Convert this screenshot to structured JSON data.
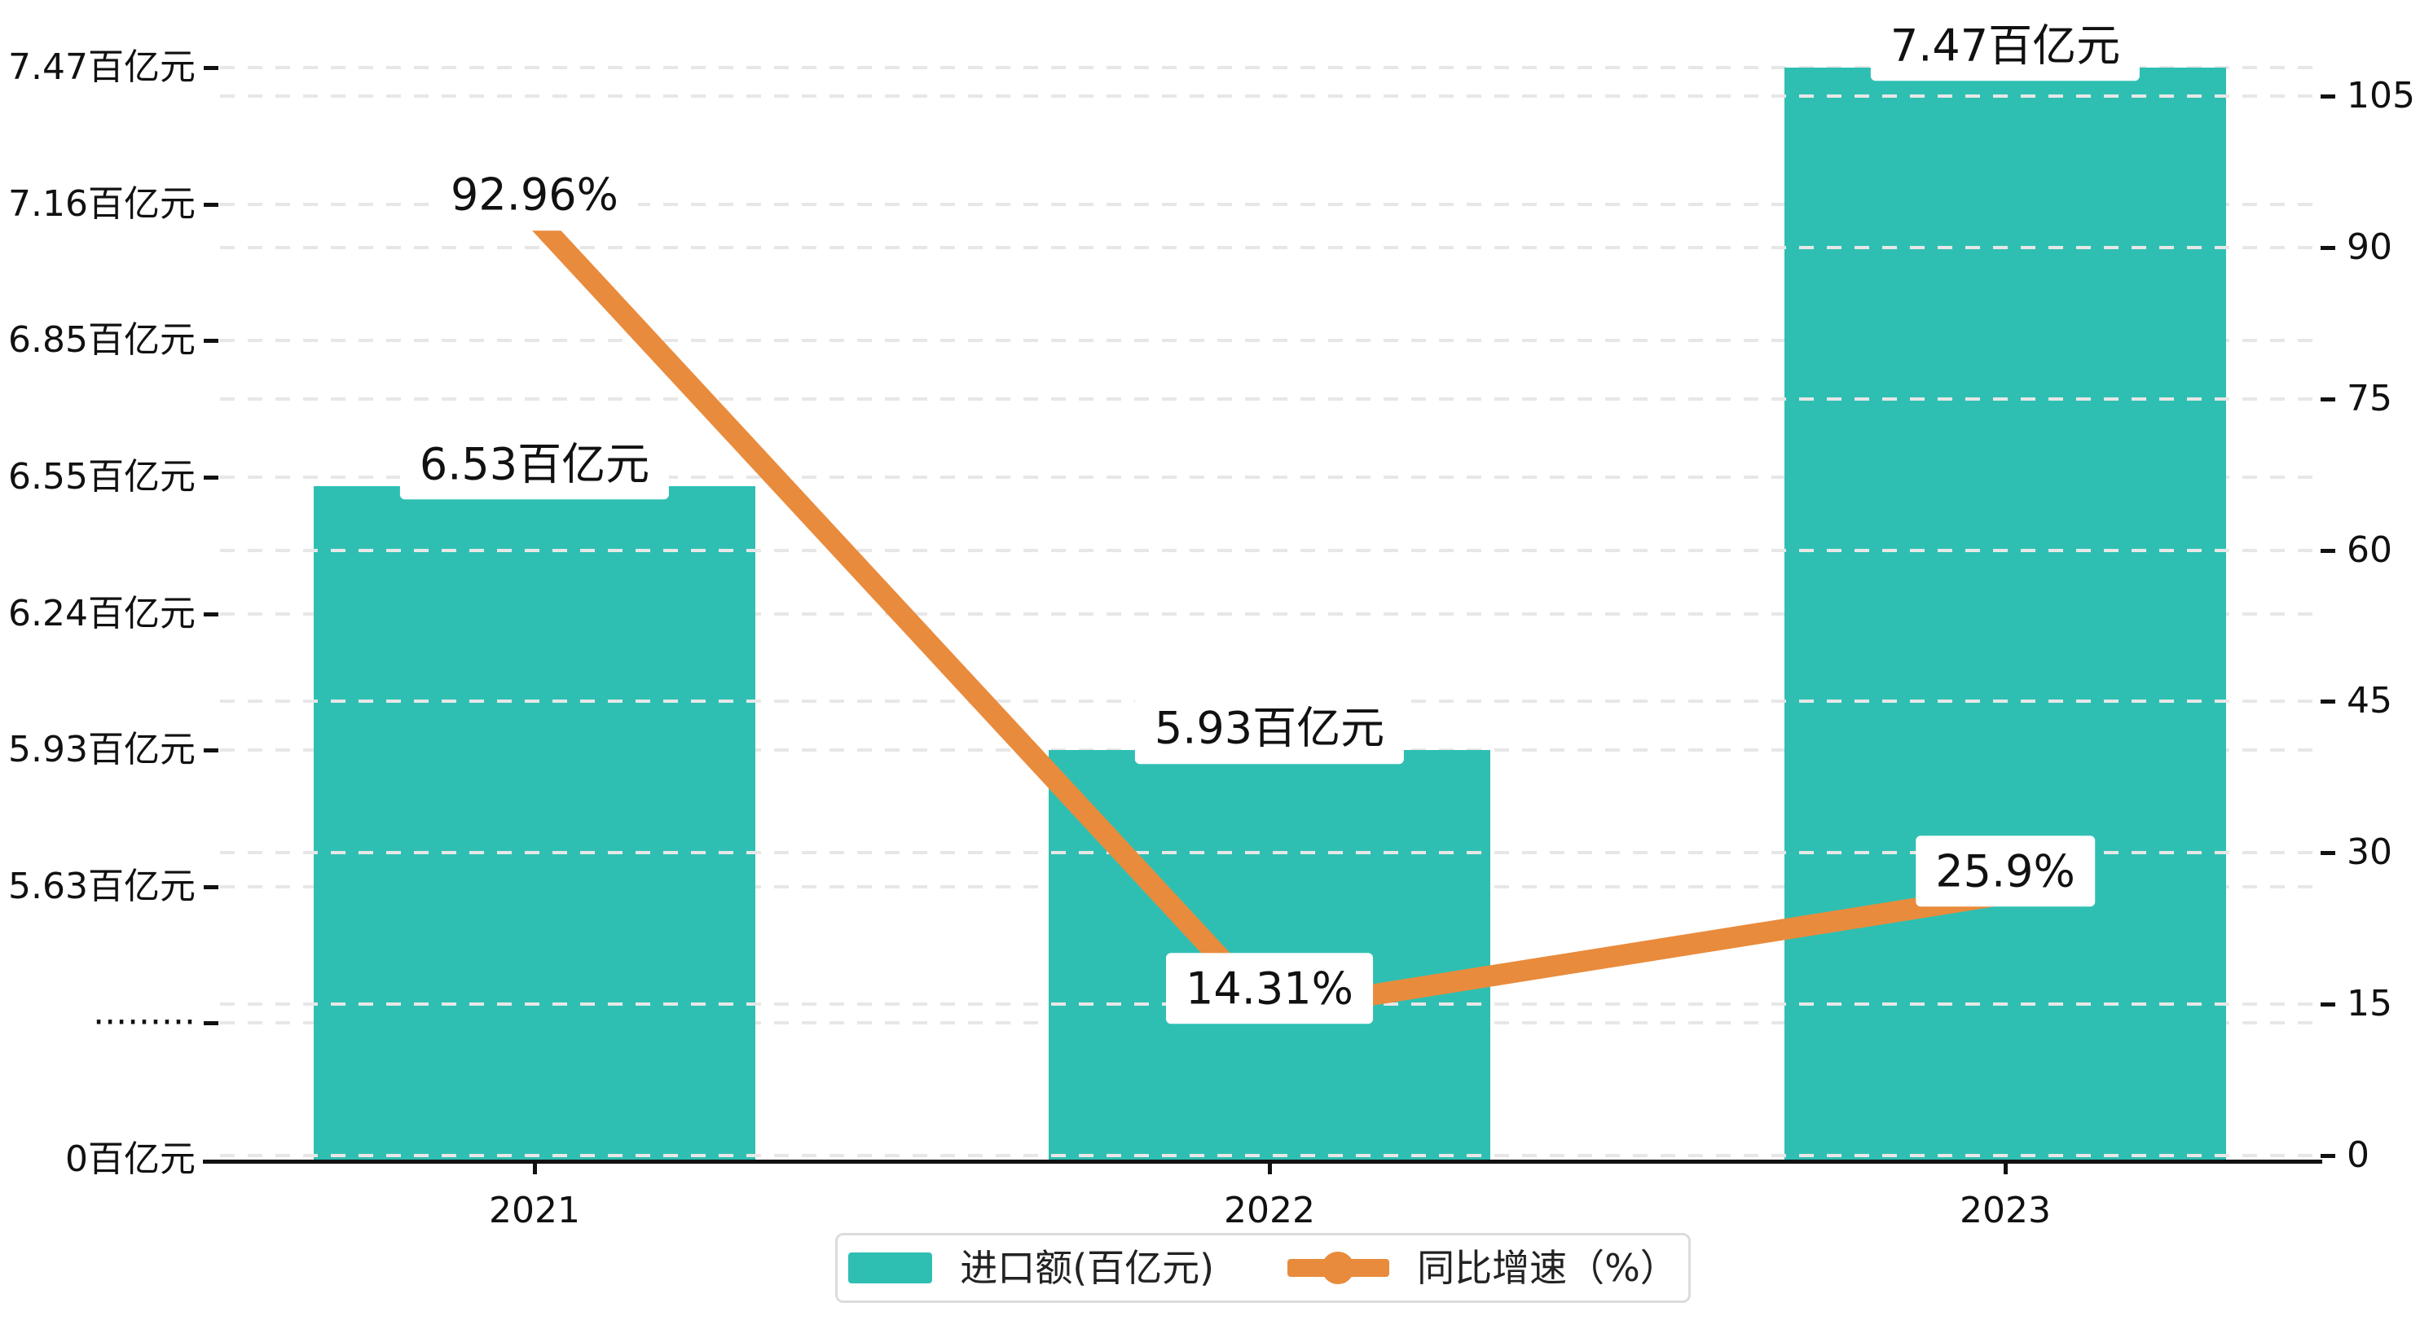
{
  "chart_data": {
    "type": "combo",
    "categories": [
      "2021",
      "2022",
      "2023"
    ],
    "series": [
      {
        "name": "进口额(百亿元)",
        "type": "bar",
        "axis": "left",
        "values": [
          6.53,
          5.93,
          7.47
        ],
        "labels": [
          "6.53百亿元",
          "5.93百亿元",
          "7.47百亿元"
        ],
        "color": "#2fbfb2"
      },
      {
        "name": "同比增速（%）",
        "type": "line",
        "axis": "right",
        "values": [
          92.96,
          14.31,
          25.9
        ],
        "labels": [
          "92.96%",
          "14.31%",
          "25.9%"
        ],
        "color": "#e98b3c"
      }
    ],
    "left_axis": {
      "tick_labels": [
        "7.47百亿元",
        "7.16百亿元",
        "6.85百亿元",
        "6.55百亿元",
        "6.24百亿元",
        "5.93百亿元",
        "5.63百亿元",
        "·········",
        "0百亿元"
      ],
      "tick_values": [
        7.47,
        7.16,
        6.85,
        6.55,
        6.24,
        5.93,
        5.63,
        null,
        0
      ],
      "has_break": true,
      "break_hidden_value": 5.33
    },
    "right_axis": {
      "ticks": [
        105,
        90,
        75,
        60,
        45,
        30,
        15,
        0
      ],
      "max": 105,
      "min": 0
    },
    "grid": true,
    "legend_position": "bottom"
  },
  "legend": {
    "items": [
      {
        "label": "进口额(百亿元)",
        "marker": "bar"
      },
      {
        "label": "同比增速（%）",
        "marker": "line"
      }
    ]
  },
  "colors": {
    "bar": "#2fbfb2",
    "line": "#e98b3c",
    "grid": "#e7e7e7",
    "axis": "#111111",
    "label_bg": "#ffffff",
    "legend_border": "#dcdcdc"
  }
}
